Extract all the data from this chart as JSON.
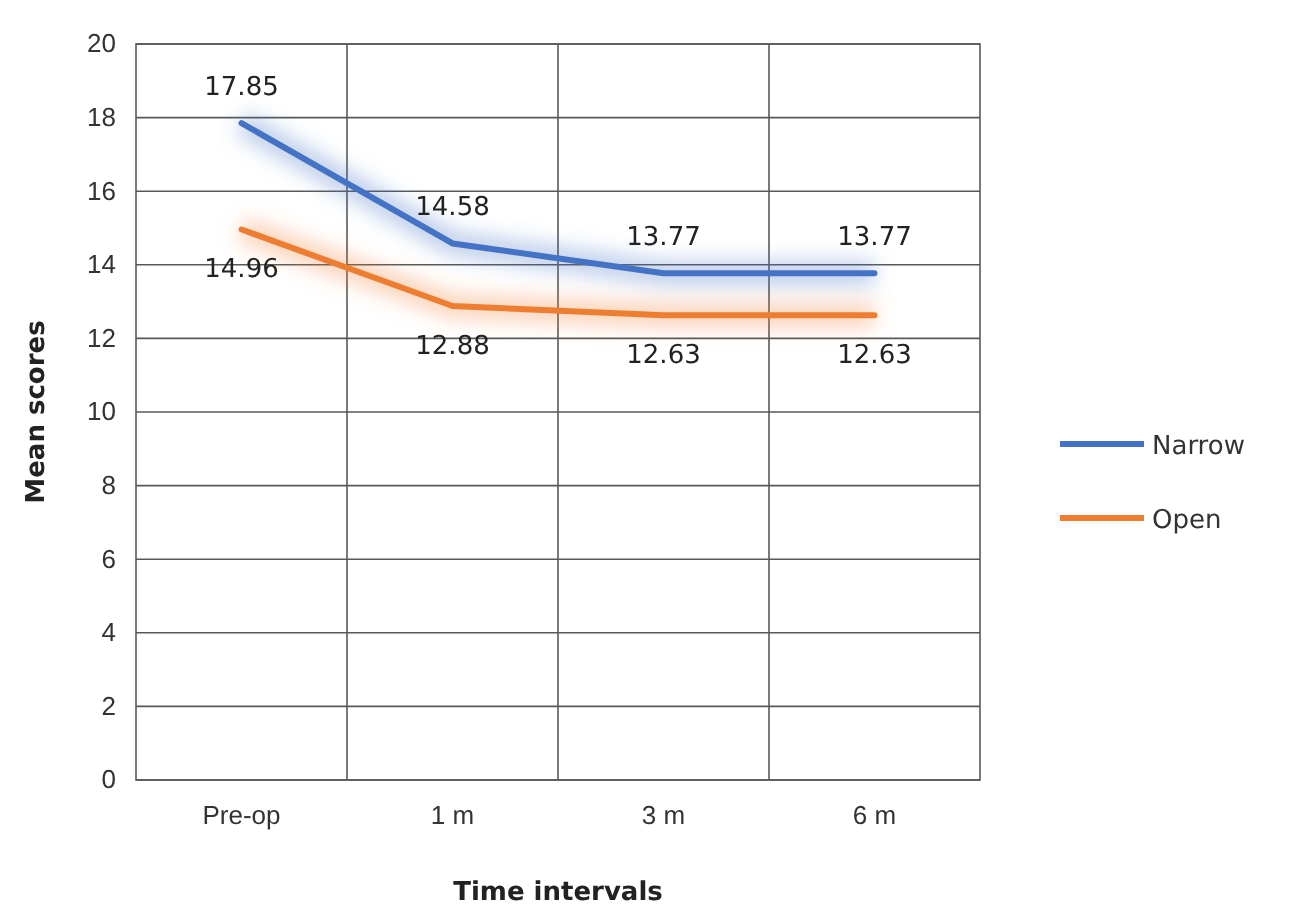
{
  "chart_data": {
    "type": "line",
    "xlabel": "Time intervals",
    "ylabel": "Mean scores",
    "categories": [
      "Pre-op",
      "1 m",
      "3 m",
      "6 m"
    ],
    "series": [
      {
        "name": "Narrow",
        "color": "#4472c4",
        "values": [
          17.85,
          14.58,
          13.77,
          13.77
        ]
      },
      {
        "name": "Open",
        "color": "#ed7d31",
        "values": [
          14.96,
          12.88,
          12.63,
          12.63
        ]
      }
    ],
    "ylim": [
      0,
      20
    ],
    "yticks": [
      0,
      2,
      4,
      6,
      8,
      10,
      12,
      14,
      16,
      18,
      20
    ],
    "grid": true,
    "legend": "right",
    "data_labels": true,
    "marker": "none",
    "line_style": "solid"
  }
}
